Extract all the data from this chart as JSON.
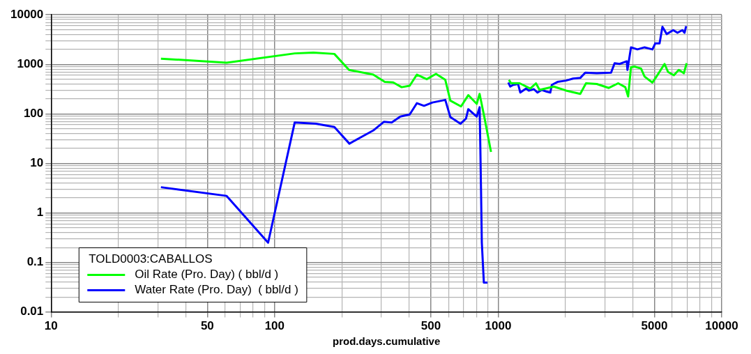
{
  "chart_data": {
    "type": "line",
    "xlabel": "prod.days.cumulative",
    "legend_title": "TOLD0003:CABALLOS",
    "log": "xy",
    "grid": true,
    "legend": "bottom left",
    "marker": "none",
    "line_style": "solid",
    "xlim": [
      10,
      10000
    ],
    "xticks": [
      10,
      {
        "value": 20,
        "label": null
      },
      {
        "value": 30,
        "label": null
      },
      {
        "value": 40,
        "label": null
      },
      50,
      {
        "value": 60,
        "label": null
      },
      {
        "value": 70,
        "label": null
      },
      {
        "value": 80,
        "label": null
      },
      {
        "value": 90,
        "label": null
      },
      100,
      {
        "value": 200,
        "label": null
      },
      {
        "value": 300,
        "label": null
      },
      {
        "value": 400,
        "label": null
      },
      500,
      {
        "value": 600,
        "label": null
      },
      {
        "value": 700,
        "label": null
      },
      {
        "value": 800,
        "label": null
      },
      {
        "value": 900,
        "label": null
      },
      1000,
      {
        "value": 2000,
        "label": null
      },
      {
        "value": 3000,
        "label": null
      },
      {
        "value": 4000,
        "label": null
      },
      5000,
      {
        "value": 6000,
        "label": null
      },
      {
        "value": 7000,
        "label": null
      },
      {
        "value": 8000,
        "label": null
      },
      {
        "value": 9000,
        "label": null
      },
      10000
    ],
    "ylim": [
      0.01,
      10000
    ],
    "yticks": [
      0.01,
      {
        "value": 0.02,
        "label": null
      },
      {
        "value": 0.03,
        "label": null
      },
      {
        "value": 0.04,
        "label": null
      },
      {
        "value": 0.05,
        "label": null
      },
      {
        "value": 0.06,
        "label": null
      },
      {
        "value": 0.07,
        "label": null
      },
      {
        "value": 0.08,
        "label": null
      },
      {
        "value": 0.09,
        "label": null
      },
      0.1,
      {
        "value": 0.2,
        "label": null
      },
      {
        "value": 0.3,
        "label": null
      },
      {
        "value": 0.4,
        "label": null
      },
      {
        "value": 0.5,
        "label": null
      },
      {
        "value": 0.6,
        "label": null
      },
      {
        "value": 0.7,
        "label": null
      },
      {
        "value": 0.8,
        "label": null
      },
      {
        "value": 0.9,
        "label": null
      },
      1,
      {
        "value": 2,
        "label": null
      },
      {
        "value": 3,
        "label": null
      },
      {
        "value": 4,
        "label": null
      },
      {
        "value": 5,
        "label": null
      },
      {
        "value": 6,
        "label": null
      },
      {
        "value": 7,
        "label": null
      },
      {
        "value": 8,
        "label": null
      },
      {
        "value": 9,
        "label": null
      },
      10,
      {
        "value": 20,
        "label": null
      },
      {
        "value": 30,
        "label": null
      },
      {
        "value": 40,
        "label": null
      },
      {
        "value": 50,
        "label": null
      },
      {
        "value": 60,
        "label": null
      },
      {
        "value": 70,
        "label": null
      },
      {
        "value": 80,
        "label": null
      },
      {
        "value": 90,
        "label": null
      },
      100,
      {
        "value": 200,
        "label": null
      },
      {
        "value": 300,
        "label": null
      },
      {
        "value": 400,
        "label": null
      },
      {
        "value": 500,
        "label": null
      },
      {
        "value": 600,
        "label": null
      },
      {
        "value": 700,
        "label": null
      },
      {
        "value": 800,
        "label": null
      },
      {
        "value": 900,
        "label": null
      },
      1000,
      {
        "value": 2000,
        "label": null
      },
      {
        "value": 3000,
        "label": null
      },
      {
        "value": 4000,
        "label": null
      },
      {
        "value": 5000,
        "label": null
      },
      {
        "value": 6000,
        "label": null
      },
      {
        "value": 7000,
        "label": null
      },
      {
        "value": 8000,
        "label": null
      },
      {
        "value": 9000,
        "label": null
      },
      10000
    ],
    "series": [
      {
        "name": "Oil Rate (Pro. Day) ( bbl/d )",
        "color": "#00ff00",
        "x": [
          31,
          61,
          123,
          149,
          185,
          215,
          276,
          311,
          339,
          370,
          402,
          433,
          479,
          527,
          580,
          611,
          682,
          735,
          802,
          826,
          870,
          929,
          1000,
          1117,
          1142,
          1248,
          1393,
          1476,
          1531,
          1774,
          2011,
          2329,
          2471,
          2761,
          3126,
          3442,
          3705,
          3814,
          3928,
          4074,
          4355,
          4518,
          4897,
          5084,
          5550,
          5754,
          6109,
          6427,
          6770,
          6970
        ],
        "values": [
          1300,
          1080,
          1660,
          1720,
          1620,
          770,
          620,
          440,
          430,
          345,
          370,
          620,
          500,
          640,
          485,
          185,
          141,
          238,
          159,
          253,
          80,
          17,
          null,
          485,
          414,
          414,
          324,
          414,
          304,
          355,
          295,
          253,
          414,
          400,
          333,
          414,
          345,
          223,
          870,
          900,
          820,
          565,
          428,
          547,
          1017,
          700,
          600,
          770,
          660,
          1050
        ]
      },
      {
        "name": "Water Rate (Pro. Day)  ( bbl/d )",
        "color": "#0000ff",
        "x": [
          31,
          61,
          93.5,
          123,
          153,
          185,
          216,
          247,
          276,
          308,
          334,
          365,
          402,
          433,
          466,
          508,
          580,
          611,
          678,
          718,
          735,
          802,
          826,
          832,
          838,
          845,
          863,
          896,
          1000,
          1110,
          1132,
          1167,
          1228,
          1256,
          1333,
          1371,
          1445,
          1500,
          1567,
          1649,
          1711,
          1738,
          1842,
          2011,
          2163,
          2329,
          2453,
          2761,
          3199,
          3318,
          3494,
          3760,
          3787,
          3928,
          4198,
          4518,
          4897,
          5047,
          5272,
          5430,
          5675,
          6067,
          6340,
          6670,
          6820,
          6930
        ],
        "values": [
          3.3,
          2.2,
          0.25,
          67,
          63,
          54,
          25,
          35,
          46,
          69,
          67,
          88,
          97,
          164,
          145,
          169,
          191,
          86,
          63,
          80,
          124,
          88,
          136,
          22,
          2.95,
          0.25,
          0.039,
          0.039,
          null,
          428,
          355,
          385,
          400,
          269,
          324,
          295,
          314,
          269,
          304,
          280,
          269,
          385,
          440,
          469,
          514,
          530,
          680,
          660,
          680,
          1050,
          1017,
          1150,
          770,
          2200,
          2000,
          2200,
          2000,
          2650,
          2650,
          5720,
          4080,
          4900,
          4330,
          4900,
          4330,
          5900
        ]
      }
    ]
  }
}
